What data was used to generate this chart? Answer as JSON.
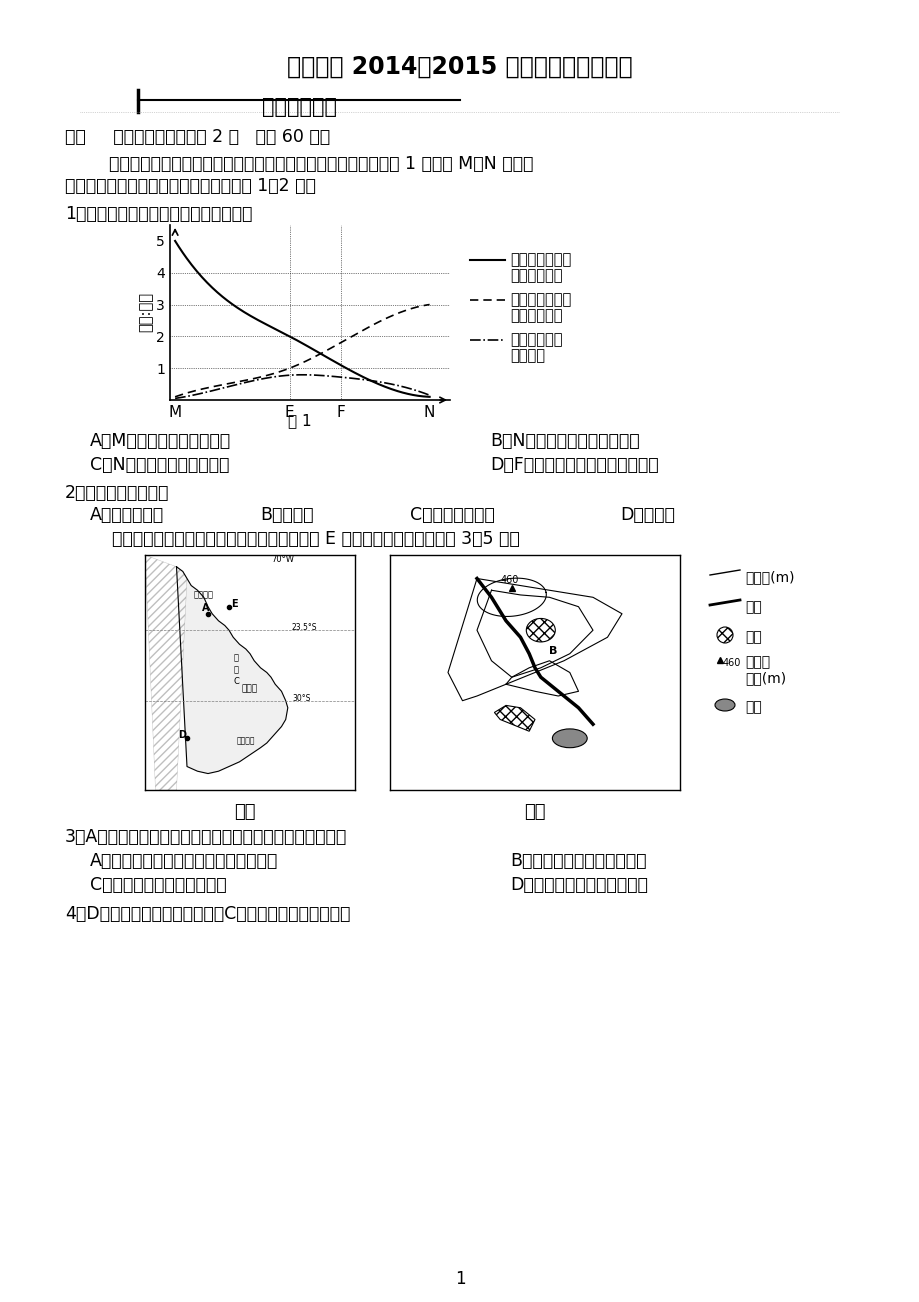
{
  "title": "三明一中 2014－2015 学年上学期学段考试",
  "subtitle": "高三地理试卷",
  "section1_header": "一、     单项选择题（每小题 2 分   共计 60 分）",
  "para1": "        原料、燃料和产品的运输费用是生产成本中的重要组成部分。图 1 表示在 M、N 两地间",
  "para2": "建设的某类工厂的运费变化图，据此回答 1～2 题。",
  "q1": "1．根据图示信息，下列说法不正确的是",
  "chart_ylabel": "运费:单位",
  "chart_xticks": [
    "M",
    "E",
    "F",
    "N"
  ],
  "chart_yticks": [
    1,
    2,
    3,
    4,
    5
  ],
  "fig_label": "图 1",
  "legend1": "单位产品的原料\n运输费用变化",
  "legend2": "单位产品的燃料\n运输费用变化",
  "legend3": "单位产品运输\n费用变化",
  "q1_opts": [
    "A．M地是该类工厂的原料地",
    "B．N地是该类工厂的产品市场",
    "C．N地是该类工厂的燃料地",
    "D．F地是该类工厂的最佳厂址区位"
  ],
  "q2": "2．该类工厂最可能是",
  "q2_opts": [
    "A．瓶装饮料厂",
    "B．制糖厂",
    "C．电视机装配厂",
    "D．炼铝厂"
  ],
  "para3": "    图中甲图为南美洲局部地区图，乙图为甲图中 E 地区的地形图。读图回答 3～5 题。",
  "map_label_left": "甲图",
  "map_label_right": "乙图",
  "q3": "3．A地附近有色金属资源丰富，其开发困难的原因可能是：",
  "q3_opts": [
    "A．气候干旱，水源短缺，缺乏能源支撑",
    "B．缺少天然海港，外运不便",
    "C．地势平坦，水能资源缺乏",
    "D．受寒流影响，阴天日子多"
  ],
  "q4": "4．D地区葡萄种植的经济效益比C地区更好的原因可能是：",
  "page_num": "1",
  "bg_color": "#ffffff",
  "text_color": "#000000"
}
